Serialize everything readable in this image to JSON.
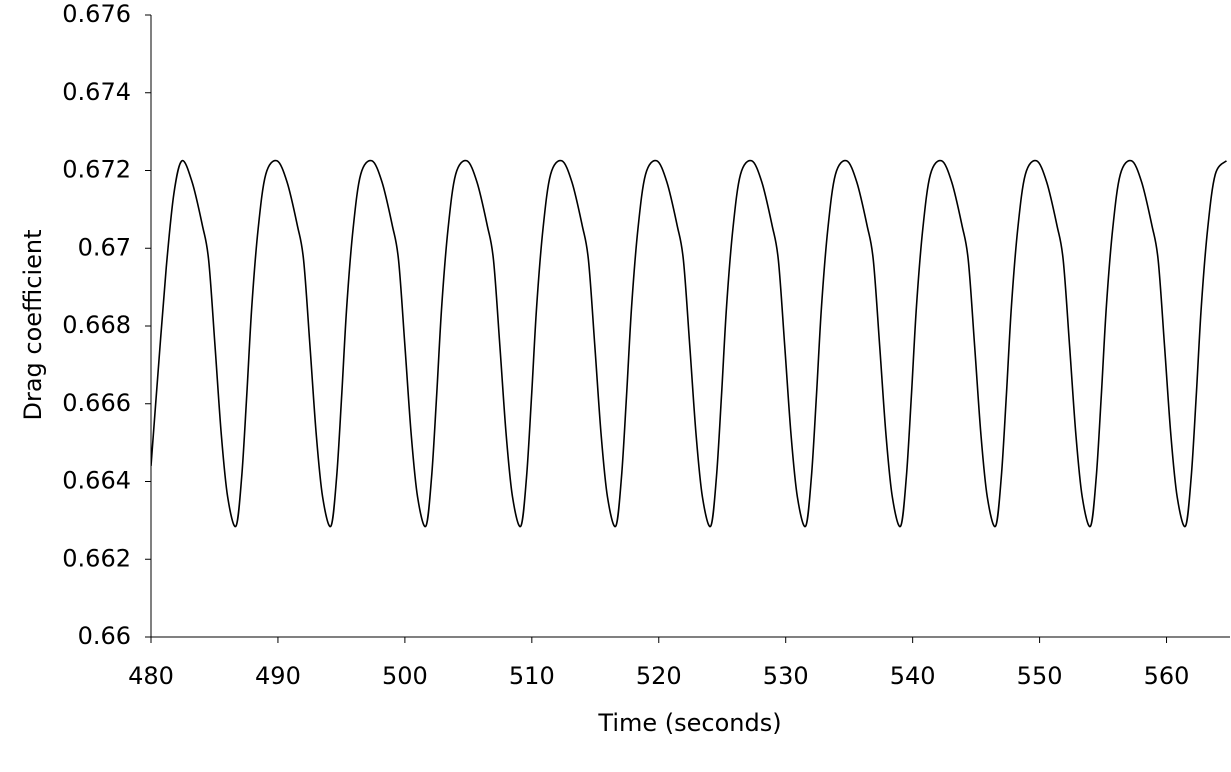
{
  "chart_data": {
    "type": "line",
    "xlabel": "Time (seconds)",
    "ylabel": "Drag coefficient",
    "color": "#000000",
    "xlim": [
      480,
      565
    ],
    "xticks": [
      480,
      490,
      500,
      510,
      520,
      530,
      540,
      550,
      560
    ],
    "ylim": [
      0.66,
      0.676
    ],
    "yticks": [
      0.66,
      0.662,
      0.664,
      0.666,
      0.668,
      0.67,
      0.672,
      0.674,
      0.676
    ],
    "x": [
      480,
      480.6,
      481.2,
      481.8,
      482.44,
      483.24,
      484.04,
      484.54,
      485.04,
      485.54,
      486.04,
      486.69,
      487.14,
      487.54,
      487.94,
      488.44,
      489.04,
      489.92,
      490.72,
      491.52,
      492.02,
      492.52,
      493.02,
      493.52,
      494.17,
      494.62,
      495.02,
      495.42,
      495.92,
      496.52,
      497.4,
      498.2,
      499.0,
      499.5,
      500.0,
      500.5,
      501.0,
      501.65,
      502.1,
      502.5,
      502.9,
      503.4,
      504.0,
      504.88,
      505.68,
      506.48,
      506.98,
      507.48,
      507.98,
      508.48,
      509.13,
      509.58,
      509.98,
      510.38,
      510.88,
      511.48,
      512.36,
      513.16,
      513.96,
      514.46,
      514.96,
      515.46,
      515.96,
      516.61,
      517.06,
      517.46,
      517.86,
      518.36,
      518.96,
      519.84,
      520.64,
      521.44,
      521.94,
      522.44,
      522.94,
      523.44,
      524.09,
      524.54,
      524.94,
      525.34,
      525.84,
      526.44,
      527.32,
      528.12,
      528.92,
      529.42,
      529.92,
      530.42,
      530.92,
      531.57,
      532.02,
      532.42,
      532.82,
      533.32,
      533.92,
      534.8,
      535.6,
      536.4,
      536.9,
      537.4,
      537.9,
      538.4,
      539.05,
      539.5,
      539.9,
      540.3,
      540.8,
      541.4,
      542.28,
      543.08,
      543.88,
      544.38,
      544.88,
      545.38,
      545.88,
      546.53,
      546.98,
      547.38,
      547.78,
      548.28,
      548.88,
      549.76,
      550.56,
      551.36,
      551.86,
      552.36,
      552.86,
      553.36,
      554.01,
      554.46,
      554.86,
      555.26,
      555.76,
      556.36,
      557.24,
      558.04,
      558.84,
      559.34,
      559.84,
      560.34,
      560.84,
      561.49,
      561.94,
      562.34,
      562.74,
      563.24,
      563.84,
      564.72
    ],
    "values": [
      0.6644,
      0.667,
      0.6695,
      0.6714,
      0.67225,
      0.6717,
      0.6706,
      0.6697,
      0.6675,
      0.6652,
      0.6636,
      0.66285,
      0.6641,
      0.6662,
      0.6685,
      0.6705,
      0.6719,
      0.67225,
      0.6717,
      0.6706,
      0.6697,
      0.6675,
      0.6652,
      0.6636,
      0.66285,
      0.6641,
      0.6662,
      0.6685,
      0.6705,
      0.6719,
      0.67225,
      0.6717,
      0.6706,
      0.6697,
      0.6675,
      0.6652,
      0.6636,
      0.66285,
      0.6641,
      0.6662,
      0.6685,
      0.6705,
      0.6719,
      0.67225,
      0.6717,
      0.6706,
      0.6697,
      0.6675,
      0.6652,
      0.6636,
      0.66285,
      0.6641,
      0.6662,
      0.6685,
      0.6705,
      0.6719,
      0.67225,
      0.6717,
      0.6706,
      0.6697,
      0.6675,
      0.6652,
      0.6636,
      0.66285,
      0.6641,
      0.6662,
      0.6685,
      0.6705,
      0.6719,
      0.67225,
      0.6717,
      0.6706,
      0.6697,
      0.6675,
      0.6652,
      0.6636,
      0.66285,
      0.6641,
      0.6662,
      0.6685,
      0.6705,
      0.6719,
      0.67225,
      0.6717,
      0.6706,
      0.6697,
      0.6675,
      0.6652,
      0.6636,
      0.66285,
      0.6641,
      0.6662,
      0.6685,
      0.6705,
      0.6719,
      0.67225,
      0.6717,
      0.6706,
      0.6697,
      0.6675,
      0.6652,
      0.6636,
      0.66285,
      0.6641,
      0.6662,
      0.6685,
      0.6705,
      0.6719,
      0.67225,
      0.6717,
      0.6706,
      0.6697,
      0.6675,
      0.6652,
      0.6636,
      0.66285,
      0.6641,
      0.6662,
      0.6685,
      0.6705,
      0.6719,
      0.67225,
      0.6717,
      0.6706,
      0.6697,
      0.6675,
      0.6652,
      0.6636,
      0.66285,
      0.6641,
      0.6662,
      0.6685,
      0.6705,
      0.6719,
      0.67225,
      0.6717,
      0.6706,
      0.6697,
      0.6675,
      0.6652,
      0.6636,
      0.66285,
      0.6641,
      0.6662,
      0.6685,
      0.6705,
      0.6719,
      0.67225
    ]
  }
}
